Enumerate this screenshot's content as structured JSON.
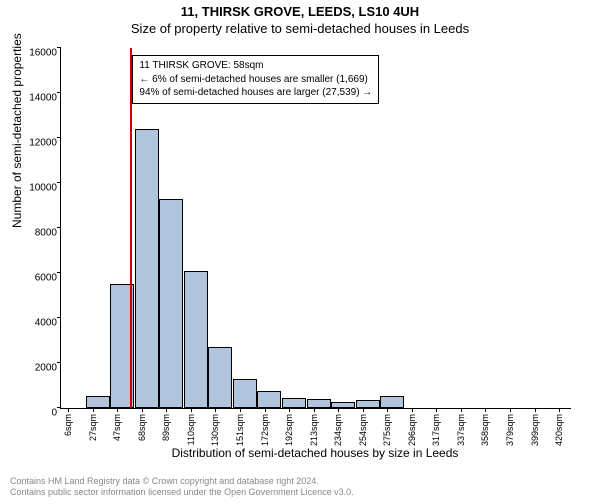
{
  "title_main": "11, THIRSK GROVE, LEEDS, LS10 4UH",
  "title_sub": "Size of property relative to semi-detached houses in Leeds",
  "chart": {
    "type": "histogram",
    "ylabel": "Number of semi-detached properties",
    "xlabel": "Distribution of semi-detached houses by size in Leeds",
    "ylim": [
      0,
      16000
    ],
    "ytick_step": 2000,
    "xlim": [
      0,
      430
    ],
    "xtick_start": 6,
    "xtick_step": 20.7,
    "xtick_suffix": "sqm",
    "xtick_count": 21,
    "bar_color": "#b0c4de",
    "bar_border": "#000000",
    "background": "#ffffff",
    "bin_start": 0,
    "bin_width": 20.7,
    "bins": [
      0,
      550,
      5500,
      12400,
      9300,
      6100,
      2700,
      1300,
      750,
      450,
      380,
      250,
      350,
      520,
      0,
      0,
      0,
      0,
      0,
      0,
      0
    ],
    "marker_value": 58,
    "marker_color": "#cc0000",
    "info_box": {
      "left_pct": 14,
      "top_pct": 2,
      "lines": [
        "11 THIRSK GROVE: 58sqm",
        "← 6% of semi-detached houses are smaller (1,669)",
        "94% of semi-detached houses are larger (27,539) →"
      ]
    }
  },
  "footer_lines": [
    "Contains HM Land Registry data © Crown copyright and database right 2024.",
    "Contains public sector information licensed under the Open Government Licence v3.0."
  ],
  "footer_color": "#888888"
}
